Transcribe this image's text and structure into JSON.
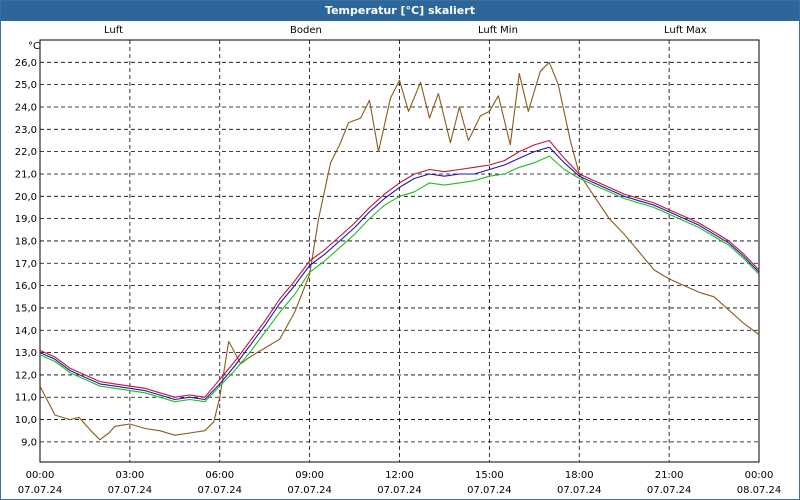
{
  "title": "Temperatur [°C] skaliert",
  "chart_data": {
    "type": "line",
    "title": "Temperatur [°C] skaliert",
    "ylabel": "°C",
    "ylim": [
      8.1,
      27.0
    ],
    "xlim_hours": [
      0,
      24
    ],
    "yticks": [
      "9,0",
      "10,0",
      "11,0",
      "12,0",
      "13,0",
      "14,0",
      "15,0",
      "16,0",
      "17,0",
      "18,0",
      "19,0",
      "20,0",
      "21,0",
      "22,0",
      "23,0",
      "24,0",
      "25,0",
      "26,0"
    ],
    "xticks": [
      {
        "time": "00:00",
        "date": "07.07.24"
      },
      {
        "time": "03:00",
        "date": "07.07.24"
      },
      {
        "time": "06:00",
        "date": "07.07.24"
      },
      {
        "time": "09:00",
        "date": "07.07.24"
      },
      {
        "time": "12:00",
        "date": "07.07.24"
      },
      {
        "time": "15:00",
        "date": "07.07.24"
      },
      {
        "time": "18:00",
        "date": "07.07.24"
      },
      {
        "time": "21:00",
        "date": "07.07.24"
      },
      {
        "time": "00:00",
        "date": "08.07.24"
      }
    ],
    "series": [
      {
        "name": "Luft",
        "color": "#1a1aa8",
        "x": [
          0,
          0.5,
          1,
          1.5,
          2,
          2.5,
          3,
          3.5,
          4,
          4.5,
          5,
          5.5,
          6,
          6.5,
          7,
          7.5,
          8,
          8.5,
          9,
          9.5,
          10,
          10.5,
          11,
          11.5,
          12,
          12.5,
          13,
          13.5,
          14,
          14.5,
          15,
          15.5,
          16,
          16.5,
          17,
          17.5,
          18,
          18.5,
          19,
          19.5,
          20,
          20.5,
          21,
          21.5,
          22,
          22.5,
          23,
          23.5,
          24
        ],
        "values": [
          13.0,
          12.7,
          12.2,
          11.9,
          11.6,
          11.5,
          11.4,
          11.3,
          11.1,
          10.9,
          11.0,
          10.9,
          11.6,
          12.4,
          13.3,
          14.2,
          15.2,
          16.0,
          16.9,
          17.4,
          18.0,
          18.6,
          19.3,
          19.9,
          20.4,
          20.8,
          21.0,
          20.9,
          21.0,
          21.0,
          21.2,
          21.4,
          21.7,
          22.0,
          22.2,
          21.5,
          20.9,
          20.6,
          20.3,
          20.0,
          19.8,
          19.6,
          19.3,
          19.0,
          18.7,
          18.3,
          17.9,
          17.3,
          16.6
        ]
      },
      {
        "name": "Boden",
        "color": "#8b5a1a",
        "x": [
          0,
          0.5,
          1,
          1.3,
          1.7,
          2,
          2.3,
          2.5,
          3,
          3.5,
          4,
          4.5,
          5,
          5.5,
          5.8,
          6,
          6.3,
          6.7,
          7,
          7.5,
          8,
          8.5,
          9,
          9.3,
          9.7,
          10,
          10.3,
          10.7,
          11,
          11.3,
          11.7,
          12,
          12.3,
          12.7,
          13,
          13.3,
          13.7,
          14,
          14.3,
          14.7,
          15,
          15.3,
          15.7,
          16,
          16.3,
          16.7,
          17,
          17.3,
          17.7,
          18,
          18.5,
          19,
          19.5,
          20,
          20.5,
          21,
          21.5,
          22,
          22.5,
          23,
          23.5,
          24
        ],
        "values": [
          11.5,
          10.2,
          10.0,
          10.1,
          9.5,
          9.1,
          9.4,
          9.7,
          9.8,
          9.6,
          9.5,
          9.3,
          9.4,
          9.5,
          9.9,
          11.0,
          13.5,
          12.5,
          12.8,
          13.2,
          13.6,
          14.8,
          16.5,
          19.0,
          21.5,
          22.3,
          23.3,
          23.5,
          24.3,
          22.0,
          24.4,
          25.2,
          23.8,
          25.1,
          23.5,
          24.6,
          22.4,
          24.0,
          22.5,
          23.6,
          23.8,
          24.5,
          22.3,
          25.5,
          23.8,
          25.6,
          26.0,
          25.0,
          22.5,
          21.0,
          20.0,
          19.0,
          18.3,
          17.5,
          16.7,
          16.3,
          16.0,
          15.7,
          15.5,
          14.9,
          14.3,
          13.8
        ]
      },
      {
        "name": "Luft Min",
        "color": "#22bb22",
        "x": [
          0,
          0.5,
          1,
          1.5,
          2,
          2.5,
          3,
          3.5,
          4,
          4.5,
          5,
          5.5,
          6,
          6.5,
          7,
          7.5,
          8,
          8.5,
          9,
          9.5,
          10,
          10.5,
          11,
          11.5,
          12,
          12.5,
          13,
          13.5,
          14,
          14.5,
          15,
          15.5,
          16,
          16.5,
          17,
          17.5,
          18,
          18.5,
          19,
          19.5,
          20,
          20.5,
          21,
          21.5,
          22,
          22.5,
          23,
          23.5,
          24
        ],
        "values": [
          12.9,
          12.6,
          12.1,
          11.8,
          11.5,
          11.4,
          11.3,
          11.2,
          11.0,
          10.8,
          10.9,
          10.8,
          11.5,
          12.2,
          13.0,
          13.9,
          14.8,
          15.6,
          16.6,
          17.1,
          17.7,
          18.3,
          19.0,
          19.6,
          20.0,
          20.2,
          20.6,
          20.5,
          20.6,
          20.7,
          20.9,
          21.0,
          21.3,
          21.5,
          21.8,
          21.2,
          20.8,
          20.5,
          20.2,
          19.9,
          19.7,
          19.5,
          19.2,
          18.9,
          18.6,
          18.2,
          17.8,
          17.2,
          16.5
        ]
      },
      {
        "name": "Luft Max",
        "color": "#c0143c",
        "x": [
          0,
          0.5,
          1,
          1.5,
          2,
          2.5,
          3,
          3.5,
          4,
          4.5,
          5,
          5.5,
          6,
          6.5,
          7,
          7.5,
          8,
          8.5,
          9,
          9.5,
          10,
          10.5,
          11,
          11.5,
          12,
          12.5,
          13,
          13.5,
          14,
          14.5,
          15,
          15.5,
          16,
          16.5,
          17,
          17.5,
          18,
          18.5,
          19,
          19.5,
          20,
          20.5,
          21,
          21.5,
          22,
          22.5,
          23,
          23.5,
          24
        ],
        "values": [
          13.1,
          12.8,
          12.3,
          12.0,
          11.7,
          11.6,
          11.5,
          11.4,
          11.2,
          11.0,
          11.1,
          11.0,
          11.8,
          12.6,
          13.5,
          14.4,
          15.4,
          16.2,
          17.1,
          17.6,
          18.2,
          18.8,
          19.5,
          20.1,
          20.6,
          21.0,
          21.2,
          21.1,
          21.2,
          21.3,
          21.4,
          21.6,
          22.0,
          22.3,
          22.5,
          21.7,
          21.0,
          20.7,
          20.4,
          20.1,
          19.9,
          19.7,
          19.4,
          19.1,
          18.8,
          18.4,
          18.0,
          17.4,
          16.7
        ]
      }
    ]
  }
}
